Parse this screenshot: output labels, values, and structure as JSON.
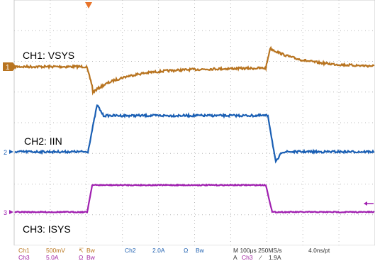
{
  "colors": {
    "grid": "#b8b8b8",
    "ch1": "#b87420",
    "ch2": "#1a5fb4",
    "ch3": "#a020b0",
    "trigger": "#e8742a",
    "background": "#ffffff"
  },
  "waveform_labels": {
    "ch1": "CH1: VSYS",
    "ch2": "CH2: IIN",
    "ch3": "CH3: ISYS"
  },
  "channel_markers": {
    "ch1": "1",
    "ch2": "2",
    "ch3": "3"
  },
  "status": {
    "ch1_name": "Ch1",
    "ch1_scale": "500mV",
    "ch1_coupling_sym": "↸",
    "ch1_bw": "Bw",
    "ch2_name": "Ch2",
    "ch2_scale": "2.0A",
    "ch2_coupling_sym": "Ω",
    "ch2_bw": "Bw",
    "ch3_name": "Ch3",
    "ch3_scale": "5.0A",
    "ch3_coupling_sym": "Ω",
    "ch3_bw": "Bw",
    "timebase": "M 100μs 250MS/s",
    "resolution": "4.0ns/pt",
    "trigger_prefix": "A",
    "trigger_source": "Ch3",
    "trigger_slope": "∕",
    "trigger_level": "1.9A"
  }
}
